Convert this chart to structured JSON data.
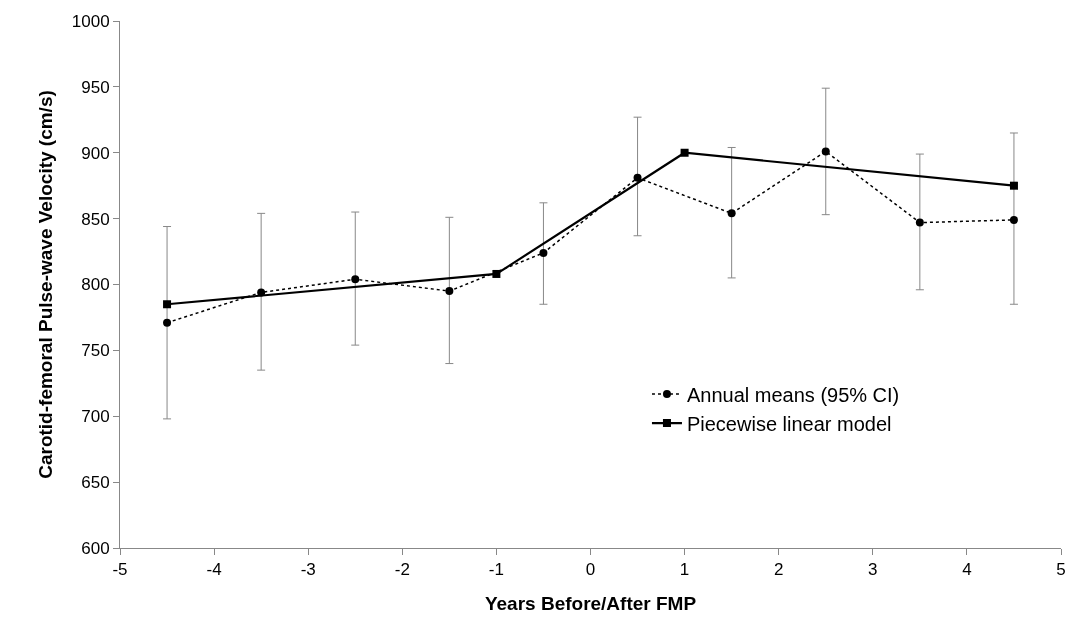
{
  "chart_data": {
    "type": "line",
    "xlabel": "Years Before/After FMP",
    "ylabel": "Carotid-femoral Pulse-wave Velocity (cm/s)",
    "xlim": [
      -5,
      5
    ],
    "xticks": [
      -5,
      -4,
      -3,
      -2,
      -1,
      0,
      1,
      2,
      3,
      4,
      5
    ],
    "ylim": [
      600,
      1000
    ],
    "yticks": [
      600,
      650,
      700,
      750,
      800,
      850,
      900,
      950,
      1000
    ],
    "grid": false,
    "legend": "bottom right",
    "series": [
      {
        "name": "Annual means (95% CI)",
        "color": "#000000",
        "marker": "circle",
        "line_style": "dotted",
        "x": [
          -4.5,
          -3.5,
          -2.5,
          -1.5,
          -0.5,
          0.5,
          1.5,
          2.5,
          3.5,
          4.5
        ],
        "values": [
          771,
          794,
          804,
          795,
          824,
          881,
          854,
          901,
          847,
          849
        ],
        "errors": [
          [
            698,
            844
          ],
          [
            735,
            854
          ],
          [
            754,
            855
          ],
          [
            740,
            851
          ],
          [
            785,
            862
          ],
          [
            837,
            927
          ],
          [
            805,
            904
          ],
          [
            853,
            949
          ],
          [
            796,
            899
          ],
          [
            785,
            915
          ]
        ]
      },
      {
        "name": "Piecewise linear model",
        "color": "#000000",
        "marker": "square",
        "line_style": "solid",
        "x": [
          -4.5,
          -1,
          1,
          4.5
        ],
        "values": [
          785,
          808,
          900,
          875
        ]
      }
    ]
  }
}
